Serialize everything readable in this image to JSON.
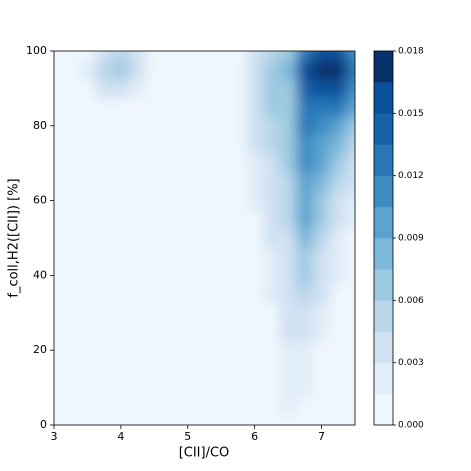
{
  "chart_data": {
    "type": "contourf",
    "xlabel": "[CII]/CO",
    "ylabel": "f_coll,H2([CII]) [%]",
    "xlim": [
      3,
      7.5
    ],
    "ylim": [
      0,
      100
    ],
    "xticks": [
      3,
      4,
      5,
      6,
      7
    ],
    "yticks": [
      0,
      20,
      40,
      60,
      80,
      100
    ],
    "x": [
      3,
      3.25,
      3.5,
      3.75,
      4,
      4.25,
      4.5,
      4.75,
      5,
      5.25,
      5.5,
      5.75,
      6,
      6.25,
      6.5,
      6.75,
      7,
      7.25,
      7.5
    ],
    "y": [
      0,
      5,
      10,
      15,
      20,
      25,
      30,
      35,
      40,
      45,
      50,
      55,
      60,
      65,
      70,
      75,
      80,
      85,
      90,
      95,
      100
    ],
    "z": [
      [
        0,
        0,
        0,
        0,
        0,
        0,
        0,
        0,
        0,
        0,
        0,
        0,
        0,
        0,
        0.001,
        0,
        0,
        0,
        0
      ],
      [
        0,
        0,
        0,
        0,
        0,
        0,
        0,
        0,
        0,
        0,
        0,
        0,
        0,
        0.001,
        0.002,
        0.001,
        0,
        0,
        0
      ],
      [
        0,
        0,
        0,
        0,
        0,
        0,
        0,
        0,
        0,
        0,
        0,
        0,
        0,
        0.001,
        0.002,
        0.002,
        0,
        0,
        0
      ],
      [
        0,
        0,
        0,
        0,
        0,
        0,
        0,
        0,
        0,
        0,
        0,
        0,
        0,
        0,
        0.002,
        0.002,
        0.001,
        0,
        0
      ],
      [
        0,
        0,
        0,
        0,
        0,
        0,
        0,
        0,
        0,
        0,
        0,
        0,
        0,
        0.001,
        0.002,
        0.002,
        0.001,
        0,
        0
      ],
      [
        0,
        0,
        0,
        0,
        0,
        0,
        0,
        0,
        0,
        0,
        0,
        0,
        0,
        0.001,
        0.003,
        0.003,
        0.002,
        0,
        0
      ],
      [
        0,
        0,
        0,
        0,
        0,
        0,
        0,
        0,
        0,
        0,
        0,
        0,
        0,
        0.001,
        0.003,
        0.004,
        0.002,
        0.001,
        0
      ],
      [
        0,
        0,
        0,
        0,
        0,
        0,
        0,
        0,
        0,
        0,
        0,
        0,
        0,
        0.002,
        0.004,
        0.005,
        0.003,
        0.001,
        0
      ],
      [
        0,
        0,
        0,
        0,
        0,
        0,
        0,
        0,
        0,
        0,
        0,
        0,
        0,
        0.002,
        0.004,
        0.006,
        0.004,
        0.002,
        0
      ],
      [
        0,
        0,
        0,
        0,
        0,
        0,
        0,
        0,
        0,
        0,
        0,
        0,
        0,
        0.002,
        0.004,
        0.007,
        0.004,
        0.002,
        0.001
      ],
      [
        0,
        0,
        0,
        0,
        0,
        0,
        0,
        0,
        0,
        0,
        0,
        0,
        0,
        0.003,
        0.004,
        0.008,
        0.005,
        0.002,
        0.001
      ],
      [
        0,
        0,
        0,
        0,
        0,
        0,
        0,
        0,
        0,
        0,
        0,
        0,
        0.001,
        0.003,
        0.005,
        0.009,
        0.006,
        0.003,
        0.002
      ],
      [
        0,
        0,
        0,
        0,
        0,
        0,
        0,
        0,
        0,
        0,
        0,
        0,
        0.002,
        0.003,
        0.005,
        0.01,
        0.007,
        0.004,
        0.002
      ],
      [
        0,
        0,
        0,
        0,
        0,
        0,
        0,
        0,
        0,
        0,
        0,
        0,
        0.002,
        0.004,
        0.005,
        0.01,
        0.008,
        0.005,
        0.003
      ],
      [
        0,
        0,
        0,
        0,
        0,
        0,
        0,
        0,
        0,
        0,
        0,
        0,
        0.002,
        0.004,
        0.006,
        0.011,
        0.009,
        0.006,
        0.004
      ],
      [
        0,
        0,
        0,
        0,
        0,
        0,
        0,
        0,
        0,
        0,
        0,
        0,
        0.003,
        0.005,
        0.006,
        0.011,
        0.01,
        0.008,
        0.005
      ],
      [
        0,
        0,
        0,
        0,
        0,
        0,
        0,
        0,
        0,
        0,
        0,
        0.001,
        0.003,
        0.005,
        0.006,
        0.012,
        0.011,
        0.01,
        0.007
      ],
      [
        0,
        0,
        0,
        0,
        0,
        0,
        0,
        0,
        0,
        0,
        0,
        0.001,
        0.004,
        0.006,
        0.006,
        0.013,
        0.013,
        0.012,
        0.009
      ],
      [
        0,
        0,
        0.001,
        0.003,
        0.004,
        0.002,
        0,
        0,
        0,
        0,
        0,
        0.001,
        0.004,
        0.006,
        0.007,
        0.014,
        0.016,
        0.015,
        0.011
      ],
      [
        0,
        0,
        0.002,
        0.005,
        0.006,
        0.004,
        0.001,
        0,
        0,
        0,
        0,
        0.001,
        0.004,
        0.006,
        0.008,
        0.015,
        0.017,
        0.017,
        0.012
      ],
      [
        0,
        0,
        0.001,
        0.004,
        0.005,
        0.003,
        0,
        0,
        0,
        0,
        0,
        0,
        0.003,
        0.005,
        0.007,
        0.013,
        0.015,
        0.015,
        0.011
      ]
    ],
    "levels": [
      0,
      0.0015,
      0.003,
      0.0045,
      0.006,
      0.0075,
      0.009,
      0.0105,
      0.012,
      0.0135,
      0.015,
      0.0165,
      0.018
    ],
    "colors": [
      "#f0f6fd",
      "#e1edf8",
      "#d0e1f2",
      "#bad6eb",
      "#9ecae1",
      "#7db8da",
      "#5ba3d0",
      "#3d8dc3",
      "#2878b8",
      "#1563aa",
      "#08519c",
      "#08306b"
    ],
    "colorbar_ticks": [
      {
        "value": 0,
        "label": "0.000"
      },
      0.003,
      0.006,
      0.009,
      0.012,
      0.015,
      0.018
    ]
  }
}
